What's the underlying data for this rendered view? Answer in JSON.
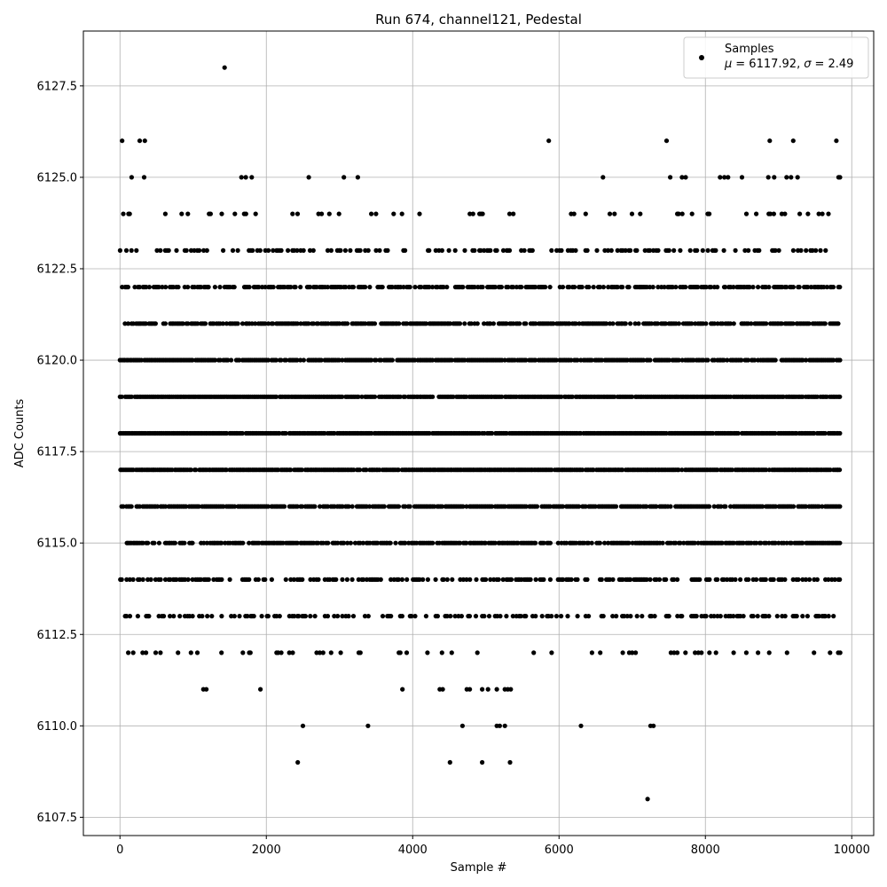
{
  "chart_data": {
    "type": "scatter",
    "title": "Run 674, channel121, Pedestal",
    "xlabel": "Sample #",
    "ylabel": "ADC Counts",
    "xlim": [
      -500,
      10300
    ],
    "ylim": [
      6107.0,
      6129.0
    ],
    "xticks": [
      0,
      2000,
      4000,
      6000,
      8000,
      10000
    ],
    "xtick_labels": [
      "0",
      "2000",
      "4000",
      "6000",
      "8000",
      "10000"
    ],
    "yticks": [
      6107.5,
      6110.0,
      6112.5,
      6115.0,
      6117.5,
      6120.0,
      6122.5,
      6125.0,
      6127.5
    ],
    "ytick_labels": [
      "6107.5",
      "6110.0",
      "6112.5",
      "6115.0",
      "6117.5",
      "6120.0",
      "6122.5",
      "6125.0",
      "6127.5"
    ],
    "grid": true,
    "legend_position": "top-right",
    "marker_color": "#000000",
    "series": [
      {
        "name": "Samples",
        "stats_label": "μ = 6117.92, σ = 2.49",
        "stats_mu_symbol": "μ",
        "stats_mu_value": "= 6117.92,",
        "stats_sigma_symbol": "σ",
        "stats_sigma_value": "= 2.49",
        "x_range": [
          0,
          9850
        ],
        "levels": [
          {
            "y": 6122,
            "x_range": [
              0,
              9850
            ],
            "density": 0.6
          },
          {
            "y": 6121,
            "x_range": [
              0,
              9850
            ],
            "density": 0.75
          },
          {
            "y": 6120,
            "x_range": [
              0,
              9850
            ],
            "density": 0.85
          },
          {
            "y": 6119,
            "x_range": [
              0,
              9850
            ],
            "density": 0.95
          },
          {
            "y": 6118,
            "x_range": [
              0,
              9850
            ],
            "density": 0.95
          },
          {
            "y": 6117,
            "x_range": [
              0,
              9850
            ],
            "density": 0.95
          },
          {
            "y": 6116,
            "x_range": [
              0,
              9850
            ],
            "density": 0.85
          },
          {
            "y": 6115,
            "x_range": [
              0,
              9850
            ],
            "density": 0.75
          },
          {
            "y": 6123,
            "x_range": [
              0,
              9850
            ],
            "density": 0.35
          },
          {
            "y": 6114,
            "x_range": [
              0,
              9850
            ],
            "density": 0.45
          },
          {
            "y": 6113,
            "x_range": [
              0,
              9850
            ],
            "density": 0.3
          },
          {
            "y": 6124,
            "x_range": [
              0,
              9850
            ],
            "density": 0.12
          },
          {
            "y": 6112,
            "x_range": [
              0,
              9850
            ],
            "density": 0.12
          }
        ],
        "points": [
          [
            1430,
            6128
          ],
          [
            30,
            6126
          ],
          [
            270,
            6126
          ],
          [
            340,
            6126
          ],
          [
            5860,
            6126
          ],
          [
            7470,
            6126
          ],
          [
            8880,
            6126
          ],
          [
            9200,
            6126
          ],
          [
            9790,
            6126
          ],
          [
            160,
            6125
          ],
          [
            330,
            6125
          ],
          [
            1660,
            6125
          ],
          [
            1720,
            6125
          ],
          [
            1800,
            6125
          ],
          [
            2580,
            6125
          ],
          [
            3060,
            6125
          ],
          [
            3250,
            6125
          ],
          [
            6600,
            6125
          ],
          [
            7520,
            6125
          ],
          [
            7680,
            6125
          ],
          [
            7730,
            6125
          ],
          [
            8200,
            6125
          ],
          [
            8260,
            6125
          ],
          [
            8310,
            6125
          ],
          [
            8500,
            6125
          ],
          [
            8860,
            6125
          ],
          [
            8940,
            6125
          ],
          [
            9110,
            6125
          ],
          [
            9170,
            6125
          ],
          [
            9260,
            6125
          ],
          [
            9820,
            6125
          ],
          [
            9840,
            6125
          ],
          [
            1140,
            6111
          ],
          [
            1180,
            6111
          ],
          [
            1920,
            6111
          ],
          [
            3860,
            6111
          ],
          [
            4370,
            6111
          ],
          [
            4410,
            6111
          ],
          [
            4740,
            6111
          ],
          [
            4780,
            6111
          ],
          [
            4950,
            6111
          ],
          [
            5030,
            6111
          ],
          [
            5150,
            6111
          ],
          [
            5260,
            6111
          ],
          [
            5300,
            6111
          ],
          [
            5340,
            6111
          ],
          [
            2500,
            6110
          ],
          [
            3390,
            6110
          ],
          [
            4680,
            6110
          ],
          [
            5150,
            6110
          ],
          [
            5190,
            6110
          ],
          [
            5260,
            6110
          ],
          [
            6300,
            6110
          ],
          [
            7250,
            6110
          ],
          [
            7290,
            6110
          ],
          [
            2430,
            6109
          ],
          [
            4510,
            6109
          ],
          [
            4950,
            6109
          ],
          [
            5330,
            6109
          ],
          [
            7210,
            6108
          ]
        ]
      }
    ]
  }
}
